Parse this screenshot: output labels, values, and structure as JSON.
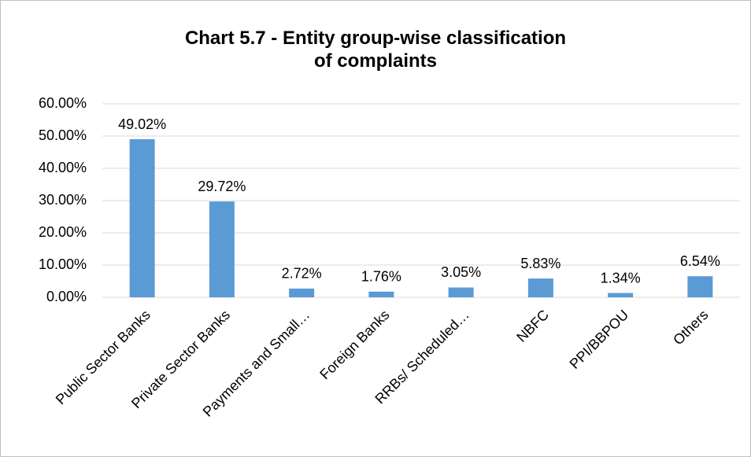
{
  "chart_data": {
    "type": "bar",
    "title": "Chart 5.7 - Entity group-wise classification of complaints",
    "categories": [
      "Public Sector Banks",
      "Private Sector Banks",
      "Payments and Small…",
      "Foreign Banks",
      "RRBs/ Scheduled…",
      "NBFC",
      "PPI/BBPOU",
      "Others"
    ],
    "values": [
      49.02,
      29.72,
      2.72,
      1.76,
      3.05,
      5.83,
      1.34,
      6.54
    ],
    "value_labels": [
      "49.02%",
      "29.72%",
      "2.72%",
      "1.76%",
      "3.05%",
      "5.83%",
      "1.34%",
      "6.54%"
    ],
    "color": "#5b9bd5",
    "ylim": [
      0,
      60
    ],
    "yticks": [
      {
        "value": 0,
        "label": "0.00%"
      },
      {
        "value": 10,
        "label": "10.00%"
      },
      {
        "value": 20,
        "label": "20.00%"
      },
      {
        "value": 30,
        "label": "30.00%"
      },
      {
        "value": 40,
        "label": "40.00%"
      },
      {
        "value": 50,
        "label": "50.00%"
      },
      {
        "value": 60,
        "label": "60.00%"
      }
    ],
    "grid": true
  }
}
